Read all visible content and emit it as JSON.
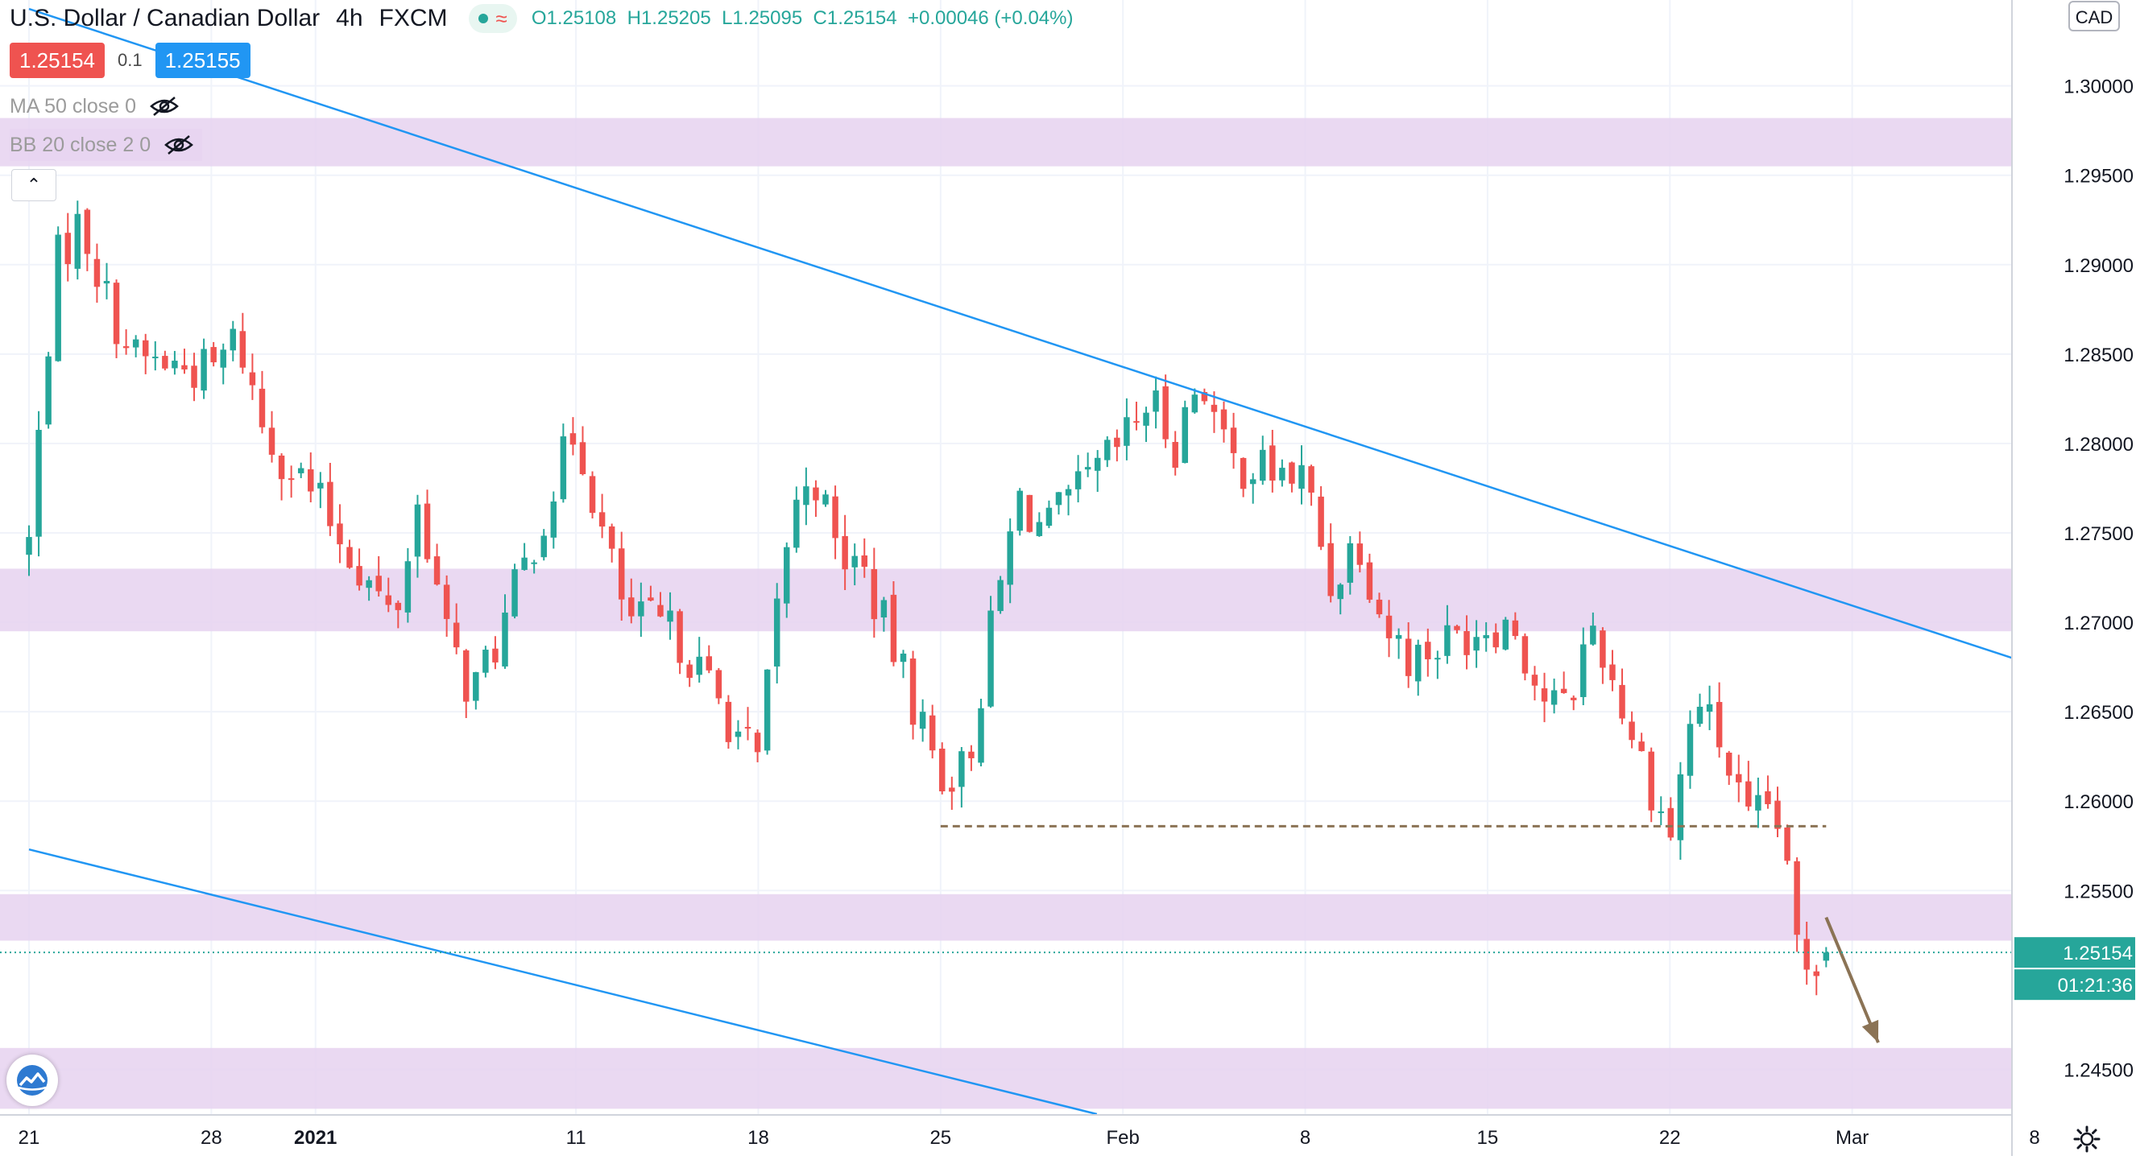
{
  "header": {
    "symbol_title": "U.S. Dollar / Canadian Dollar",
    "interval": "4h",
    "exchange": "FXCM",
    "ohlc": {
      "o_label": "O",
      "o": "1.25108",
      "h_label": "H",
      "h": "1.25205",
      "l_label": "L",
      "l": "1.25095",
      "c_label": "C",
      "c": "1.25154",
      "change": "+0.00046 (+0.04%)"
    }
  },
  "trade": {
    "sell": "1.25154",
    "spread": "0.1",
    "buy": "1.25155"
  },
  "indicators": {
    "ma": "MA 50 close 0",
    "bb": "BB 20 close 2 0"
  },
  "price_scale": {
    "currency": "CAD",
    "last_price": "1.25154",
    "countdown": "01:21:36"
  },
  "colors": {
    "up": "#26a69a",
    "down": "#ef5350",
    "trendline": "#2196f3",
    "zone": "#e6d2f0",
    "support_line": "#8b7355",
    "arrow": "#8b7355"
  },
  "chart_data": {
    "type": "candlestick",
    "interval": "4h",
    "y_ticks": [
      "1.30000",
      "1.29500",
      "1.29000",
      "1.28500",
      "1.28000",
      "1.27500",
      "1.27000",
      "1.26500",
      "1.26000",
      "1.25500",
      "1.24500"
    ],
    "ylim": [
      1.2425,
      1.3048
    ],
    "x_tick_labels": [
      {
        "label": "21",
        "date": "2020-12-21"
      },
      {
        "label": "28",
        "date": "2020-12-28"
      },
      {
        "label": "2021",
        "date": "2021-01-01",
        "bold": true
      },
      {
        "label": "11",
        "date": "2021-01-11"
      },
      {
        "label": "18",
        "date": "2021-01-18"
      },
      {
        "label": "25",
        "date": "2021-01-25"
      },
      {
        "label": "Feb",
        "date": "2021-02-01"
      },
      {
        "label": "8",
        "date": "2021-02-08"
      },
      {
        "label": "15",
        "date": "2021-02-15"
      },
      {
        "label": "22",
        "date": "2021-02-22"
      },
      {
        "label": "Mar",
        "date": "2021-03-01"
      },
      {
        "label": "8",
        "date": "2021-03-08"
      }
    ],
    "swing_path": [
      [
        "2020-12-21",
        1.2745
      ],
      [
        "2020-12-22",
        1.29
      ],
      [
        "2020-12-23",
        1.2925
      ],
      [
        "2020-12-24",
        1.288
      ],
      [
        "2020-12-25",
        1.2848
      ],
      [
        "2020-12-28",
        1.284
      ],
      [
        "2020-12-29",
        1.286
      ],
      [
        "2020-12-30",
        1.2808
      ],
      [
        "2020-12-31",
        1.2788
      ],
      [
        "2021-01-01",
        1.277
      ],
      [
        "2021-01-04",
        1.27
      ],
      [
        "2021-01-05",
        1.277
      ],
      [
        "2021-01-06",
        1.2692
      ],
      [
        "2021-01-07",
        1.266
      ],
      [
        "2021-01-08",
        1.269
      ],
      [
        "2021-01-11",
        1.281
      ],
      [
        "2021-01-12",
        1.275
      ],
      [
        "2021-01-13",
        1.27
      ],
      [
        "2021-01-14",
        1.27
      ],
      [
        "2021-01-15",
        1.269
      ],
      [
        "2021-01-18",
        1.262
      ],
      [
        "2021-01-19",
        1.274
      ],
      [
        "2021-01-20",
        1.279
      ],
      [
        "2021-01-21",
        1.274
      ],
      [
        "2021-01-22",
        1.273
      ],
      [
        "2021-01-25",
        1.2615
      ],
      [
        "2021-01-26",
        1.2618
      ],
      [
        "2021-01-27",
        1.27
      ],
      [
        "2021-01-28",
        1.277
      ],
      [
        "2021-01-29",
        1.275
      ],
      [
        "2021-02-01",
        1.28
      ],
      [
        "2021-02-02",
        1.2825
      ],
      [
        "2021-02-03",
        1.28
      ],
      [
        "2021-02-04",
        1.284
      ],
      [
        "2021-02-05",
        1.279
      ],
      [
        "2021-02-08",
        1.278
      ],
      [
        "2021-02-09",
        1.272
      ],
      [
        "2021-02-10",
        1.275
      ],
      [
        "2021-02-11",
        1.27
      ],
      [
        "2021-02-12",
        1.268
      ],
      [
        "2021-02-15",
        1.27
      ],
      [
        "2021-02-16",
        1.27
      ],
      [
        "2021-02-17",
        1.266
      ],
      [
        "2021-02-18",
        1.265
      ],
      [
        "2021-02-19",
        1.27
      ],
      [
        "2021-02-22",
        1.258
      ],
      [
        "2021-02-23",
        1.266
      ],
      [
        "2021-02-24",
        1.263
      ],
      [
        "2021-02-25",
        1.2585
      ],
      [
        "2021-02-26",
        1.26
      ],
      [
        "2021-02-27",
        1.251
      ],
      [
        "2021-02-28",
        1.25154
      ]
    ],
    "candles_count": 186,
    "last_close": 1.25154,
    "zones": [
      [
        1.2955,
        1.2982
      ],
      [
        1.2695,
        1.273
      ],
      [
        1.2522,
        1.2548
      ],
      [
        1.2428,
        1.2462
      ]
    ],
    "trendlines": [
      {
        "from": [
          "2020-12-21",
          1.3043
        ],
        "to": [
          "2021-03-08",
          1.2676
        ]
      },
      {
        "from": [
          "2020-12-21",
          1.2573
        ],
        "to": [
          "2021-01-31",
          1.2425
        ]
      }
    ],
    "support_level": {
      "value": 1.2586,
      "from": "2021-01-25",
      "to": "2021-02-28"
    },
    "projection_arrow": {
      "from": [
        "2021-02-28",
        1.2535
      ],
      "to": [
        "2021-03-02",
        1.2465
      ]
    },
    "grid": true,
    "legend_position": "top-left"
  }
}
